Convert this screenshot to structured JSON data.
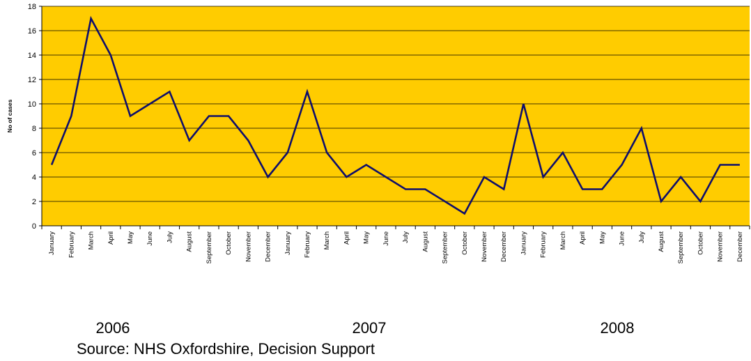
{
  "chart_data": {
    "type": "line",
    "title": "",
    "ylabel": "No of cases",
    "xlabel": "",
    "ylim": [
      0,
      18
    ],
    "yticks": [
      0,
      2,
      4,
      6,
      8,
      10,
      12,
      14,
      16,
      18
    ],
    "grid": true,
    "legend": "none",
    "colors": {
      "plot_background": "#FFCC00",
      "line": "#0E0E6B",
      "grid": "#000000"
    },
    "categories": [
      "January",
      "February",
      "March",
      "April",
      "May",
      "June",
      "July",
      "August",
      "September",
      "October",
      "November",
      "December",
      "January",
      "February",
      "March",
      "April",
      "May",
      "June",
      "July",
      "August",
      "September",
      "October",
      "November",
      "December",
      "January",
      "February",
      "March",
      "April",
      "May",
      "June",
      "July",
      "August",
      "September",
      "October",
      "November",
      "December"
    ],
    "years": [
      "2006",
      "2007",
      "2008"
    ],
    "series": [
      {
        "values": [
          5,
          9,
          17,
          14,
          9,
          10,
          11,
          7,
          9,
          9,
          7,
          4,
          6,
          11,
          6,
          4,
          5,
          4,
          3,
          3,
          2,
          1,
          4,
          3,
          10,
          4,
          6,
          3,
          3,
          5,
          8,
          2,
          4,
          2,
          5,
          5
        ]
      }
    ]
  },
  "footer": {
    "source": "Source:  NHS Oxfordshire, Decision Support"
  }
}
